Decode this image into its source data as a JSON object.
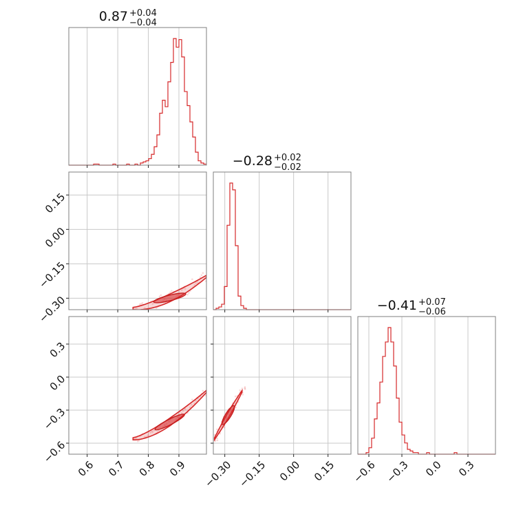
{
  "chart_data": {
    "type": "corner",
    "params": [
      {
        "title": "0.87",
        "plus": "+0.04",
        "minus": "−0.04",
        "range": [
          0.54,
          0.99
        ],
        "ticks": [
          0.6,
          0.7,
          0.8,
          0.9
        ],
        "tick_labels": [
          "0.6",
          "0.7",
          "0.8",
          "0.9"
        ]
      },
      {
        "title": "−0.28",
        "plus": "+0.02",
        "minus": "−0.02",
        "range": [
          -0.35,
          0.25
        ],
        "ticks": [
          -0.3,
          -0.15,
          0.0,
          0.15
        ],
        "tick_labels": [
          "−0.30",
          "−0.15",
          "0.00",
          "0.15"
        ]
      },
      {
        "title": "−0.41",
        "plus": "+0.07",
        "minus": "−0.06",
        "range": [
          -0.7,
          0.55
        ],
        "ticks": [
          -0.6,
          -0.3,
          0.0,
          0.3
        ],
        "tick_labels": [
          "−0.6",
          "−0.3",
          "0.0",
          "0.3"
        ]
      }
    ],
    "hist": [
      {
        "edges_start": 0.54,
        "bin_width": 0.009,
        "counts": [
          0,
          0,
          0,
          0,
          0,
          0,
          0,
          0,
          0,
          1,
          1,
          0,
          0,
          0,
          0,
          0,
          1,
          0,
          0,
          0,
          0,
          1,
          0,
          0,
          1,
          0,
          2,
          3,
          4,
          6,
          10,
          17,
          28,
          48,
          60,
          54,
          77,
          95,
          117,
          109,
          116,
          100,
          68,
          55,
          40,
          26,
          12,
          4,
          2,
          1
        ]
      },
      {
        "edges_start": -0.35,
        "bin_width": 0.012,
        "counts": [
          0,
          1,
          2,
          4,
          17,
          62,
          93,
          88,
          47,
          10,
          3,
          1,
          0,
          0,
          0,
          0,
          0,
          0,
          0,
          0,
          0,
          0,
          0,
          0,
          0,
          0,
          0,
          0,
          0,
          0,
          0,
          0,
          0,
          0,
          0,
          0,
          0,
          0,
          0,
          0,
          0,
          0,
          0,
          0,
          0,
          0,
          0,
          0,
          0,
          0
        ]
      },
      {
        "edges_start": -0.7,
        "bin_width": 0.025,
        "counts": [
          0,
          0,
          0,
          1,
          4,
          10,
          22,
          32,
          45,
          61,
          70,
          79,
          70,
          55,
          35,
          20,
          12,
          7,
          3,
          2,
          1,
          1,
          0,
          0,
          0,
          1,
          0,
          0,
          0,
          0,
          0,
          0,
          0,
          0,
          0,
          1,
          0,
          0,
          0,
          0,
          0,
          0,
          0,
          0,
          0,
          0,
          0,
          0,
          0,
          0
        ]
      }
    ],
    "grid": true,
    "color": "#d62728",
    "frame_color": "#7f7f7f",
    "grid_color": "#c8c8c8"
  }
}
